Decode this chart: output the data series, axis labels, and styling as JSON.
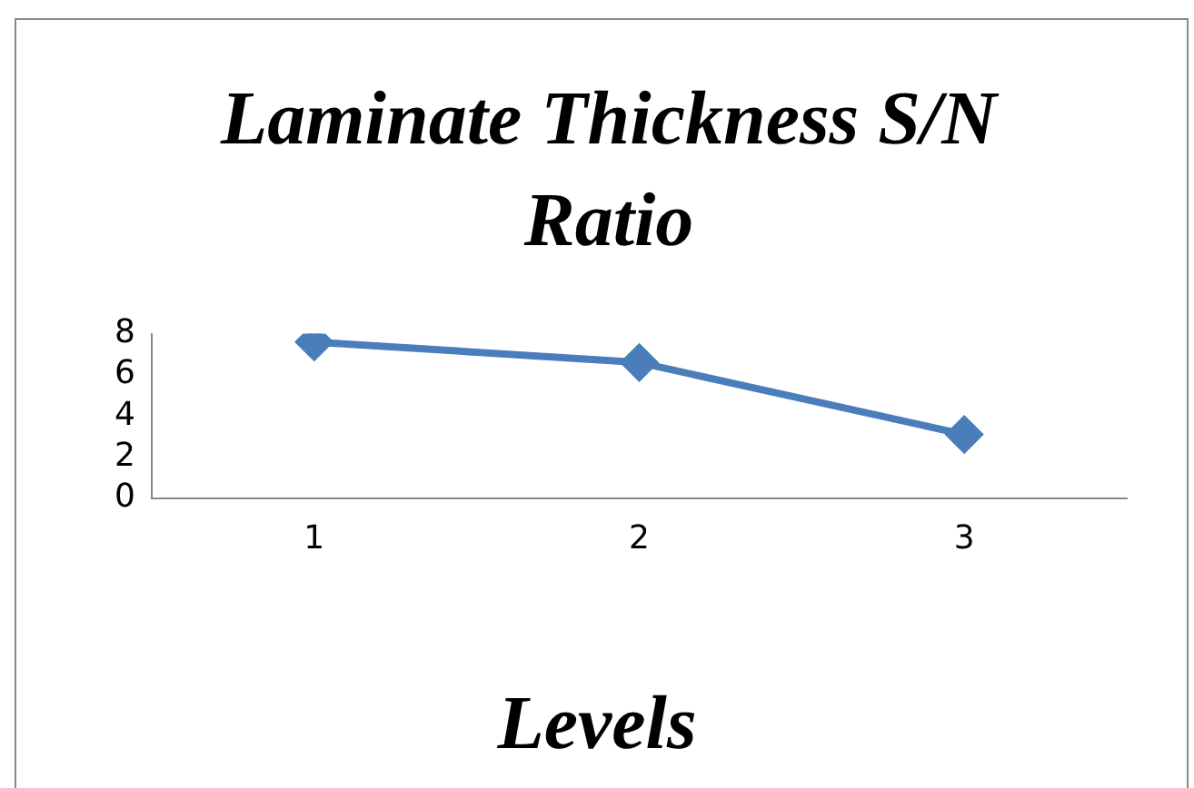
{
  "chart_data": {
    "type": "line",
    "title": "Laminate Thickness S/N Ratio",
    "xlabel": "Levels",
    "categories": [
      "1",
      "2",
      "3"
    ],
    "series": [
      {
        "color": "#4a7ebb",
        "values": [
          7.6,
          6.6,
          3.1
        ]
      }
    ],
    "ylim": [
      0,
      8
    ],
    "yticks": [
      0,
      2,
      4,
      6,
      8
    ],
    "grid": false,
    "legend": false,
    "marker": "diamond",
    "line_style": "solid"
  }
}
